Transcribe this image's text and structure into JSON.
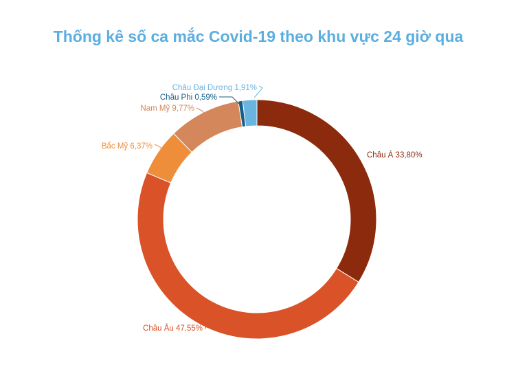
{
  "chart_data": {
    "type": "pie",
    "variant": "donut",
    "title": "Thống kê số ca mắc Covid-19 theo khu vực 24 giờ qua",
    "title_color": "#5aaee0",
    "slices": [
      {
        "label": "Châu Á 33,80%",
        "value": 33.8,
        "color": "#8b2a0c"
      },
      {
        "label": "Châu Âu 47,55%",
        "value": 47.55,
        "color": "#d95228"
      },
      {
        "label": "Bắc Mỹ 6,37%",
        "value": 6.37,
        "color": "#ef8e3a"
      },
      {
        "label": "Nam Mỹ 9,77%",
        "value": 9.77,
        "color": "#d4875a"
      },
      {
        "label": "Châu Phi  0,59%",
        "value": 0.59,
        "color": "#165f86"
      },
      {
        "label": "Châu Đại Dương 1,91%",
        "value": 1.91,
        "color": "#6ab4e0"
      }
    ]
  }
}
